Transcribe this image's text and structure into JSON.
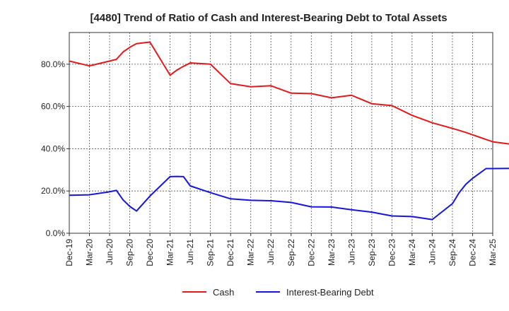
{
  "chart_data": {
    "type": "line",
    "title": "[4480]  Trend of Ratio of Cash and Interest-Bearing Debt to Total Assets",
    "xlabel": "",
    "ylabel": "",
    "ylim": [
      0,
      95
    ],
    "y_ticks": [
      0,
      20,
      40,
      60,
      80
    ],
    "y_tick_labels": [
      "0.0%",
      "20.0%",
      "40.0%",
      "60.0%",
      "80.0%"
    ],
    "x_tick_labels": [
      "Dec-19",
      "Mar-20",
      "Jun-20",
      "Sep-20",
      "Dec-20",
      "Mar-21",
      "Jun-21",
      "Sep-21",
      "Dec-21",
      "Mar-22",
      "Jun-22",
      "Sep-22",
      "Dec-22",
      "Mar-23",
      "Jun-23",
      "Sep-23",
      "Dec-23",
      "Mar-24",
      "Jun-24",
      "Sep-24",
      "Dec-24",
      "Mar-25"
    ],
    "grid": true,
    "legend_position": "bottom",
    "x_months": [
      0,
      3,
      6,
      7,
      8,
      9,
      10,
      12,
      15,
      16,
      17,
      18,
      21,
      24,
      27,
      30,
      33,
      36,
      39,
      42,
      45,
      48,
      51,
      54,
      57,
      58,
      59,
      60,
      61,
      62,
      63,
      66,
      69,
      72
    ],
    "series": [
      {
        "name": "Cash",
        "color": "#e31a1c",
        "values": [
          81.5,
          79.2,
          81.5,
          82.3,
          85.8,
          88.0,
          89.7,
          90.5,
          74.8,
          77.2,
          79.0,
          80.6,
          80.0,
          70.8,
          69.3,
          69.8,
          66.3,
          66.1,
          64.1,
          65.3,
          61.3,
          60.4,
          55.8,
          52.3,
          49.6,
          48.7,
          47.7,
          46.6,
          45.5,
          44.4,
          43.3,
          42.0,
          null,
          null
        ],
        "values_note": ""
      },
      {
        "name": "Interest-Bearing Debt",
        "color": "#1515e0",
        "values": [
          18.0,
          18.2,
          19.6,
          20.3,
          15.8,
          12.7,
          10.5,
          17.6,
          26.8,
          26.9,
          26.8,
          22.4,
          19.2,
          16.3,
          15.6,
          15.4,
          14.6,
          12.5,
          12.4,
          11.1,
          10.0,
          8.2,
          7.9,
          6.5,
          14.0,
          19.2,
          23.2,
          26.0,
          28.3,
          30.6,
          30.6,
          30.7,
          33.5,
          null
        ],
        "values_note": ""
      }
    ]
  }
}
